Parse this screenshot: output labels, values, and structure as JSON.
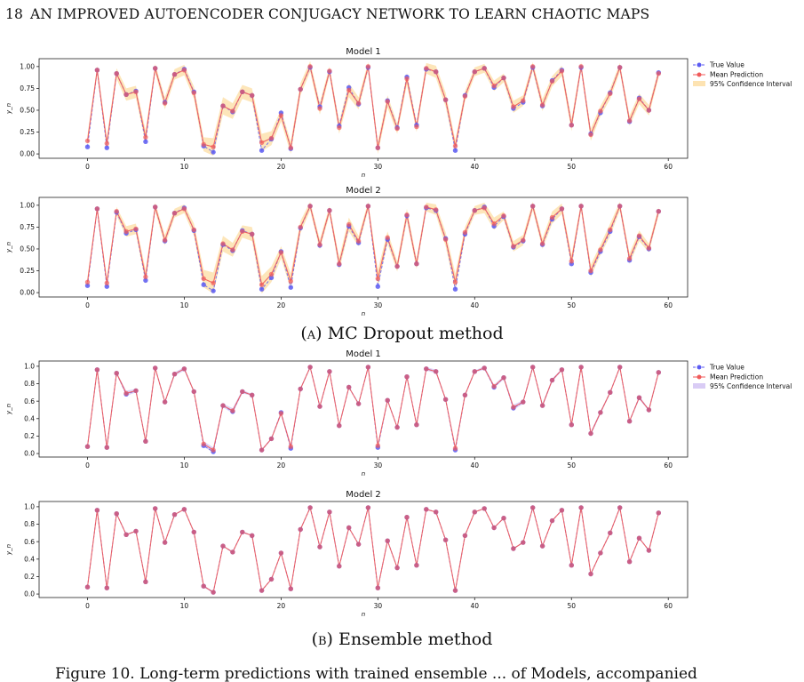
{
  "header": {
    "page_number": "18",
    "running_title": "AN IMPROVED AUTOENCODER CONJUGACY NETWORK TO LEARN CHAOTIC MAPS"
  },
  "legend_labels": {
    "true_value": "True Value",
    "mean_prediction": "Mean Prediction",
    "ci": "95% Confidence Interval"
  },
  "captions": {
    "a_label": "(a)",
    "a_text": "MC Dropout method",
    "b_label": "(b)",
    "b_text": "Ensemble method"
  },
  "footer_text": "Figure 10. Long-term predictions with trained ensemble ... of Models, accompanied",
  "colors": {
    "true_value": "#5b5bf2",
    "mean_prediction": "#f05a5a",
    "ci_dropout": "#fde3b2",
    "ci_ensemble": "#d9ccf5"
  },
  "chart_data": [
    {
      "type": "line",
      "group": "MC Dropout method",
      "title": "Model 1",
      "xlabel": "n",
      "ylabel": "y_n",
      "xlim": [
        -5,
        62
      ],
      "ylim": [
        -0.05,
        1.09
      ],
      "xticks": [
        0,
        10,
        20,
        30,
        40,
        50,
        60
      ],
      "yticks": [
        0.0,
        0.25,
        0.5,
        0.75,
        1.0
      ],
      "ytick_labels": [
        "0.00",
        "0.25",
        "0.50",
        "0.75",
        "1.00"
      ],
      "legend": "outside-right",
      "ci_width": [
        0.07,
        0.05,
        0.07,
        0.06,
        0.07,
        0.07,
        0.08,
        0.05,
        0.07,
        0.06,
        0.06,
        0.07,
        0.08,
        0.1,
        0.1,
        0.09,
        0.08,
        0.08,
        0.1,
        0.08,
        0.07,
        0.07,
        0.07,
        0.06,
        0.07,
        0.05,
        0.07,
        0.08,
        0.07,
        0.05,
        0.07,
        0.07,
        0.06,
        0.07,
        0.06,
        0.06,
        0.07,
        0.08,
        0.07,
        0.06,
        0.05,
        0.05,
        0.06,
        0.05,
        0.07,
        0.06,
        0.05,
        0.07,
        0.06,
        0.06,
        0.07,
        0.05,
        0.07,
        0.06,
        0.06,
        0.05,
        0.06,
        0.06,
        0.06,
        0.05
      ],
      "series": [
        {
          "name": "True Value",
          "values": [
            0.08,
            0.96,
            0.07,
            0.92,
            0.68,
            0.72,
            0.14,
            0.98,
            0.59,
            0.91,
            0.97,
            0.71,
            0.09,
            0.02,
            0.55,
            0.48,
            0.71,
            0.67,
            0.04,
            0.17,
            0.47,
            0.06,
            0.74,
            0.99,
            0.54,
            0.94,
            0.32,
            0.76,
            0.57,
            0.99,
            0.07,
            0.61,
            0.3,
            0.88,
            0.33,
            0.97,
            0.94,
            0.62,
            0.04,
            0.67,
            0.94,
            0.98,
            0.76,
            0.87,
            0.52,
            0.59,
            0.99,
            0.55,
            0.84,
            0.96,
            0.33,
            0.99,
            0.23,
            0.47,
            0.7,
            0.99,
            0.37,
            0.64,
            0.5,
            0.93
          ]
        },
        {
          "name": "Mean Prediction",
          "values": [
            0.15,
            0.96,
            0.12,
            0.92,
            0.68,
            0.71,
            0.19,
            0.98,
            0.58,
            0.91,
            0.96,
            0.7,
            0.11,
            0.08,
            0.55,
            0.49,
            0.71,
            0.67,
            0.13,
            0.18,
            0.44,
            0.07,
            0.74,
            1.0,
            0.52,
            0.95,
            0.3,
            0.73,
            0.58,
            1.0,
            0.07,
            0.6,
            0.29,
            0.86,
            0.31,
            0.98,
            0.94,
            0.62,
            0.09,
            0.66,
            0.94,
            0.98,
            0.78,
            0.87,
            0.54,
            0.61,
            1.0,
            0.56,
            0.83,
            0.95,
            0.33,
            1.0,
            0.22,
            0.49,
            0.69,
            0.99,
            0.38,
            0.63,
            0.5,
            0.92
          ]
        }
      ]
    },
    {
      "type": "line",
      "group": "MC Dropout method",
      "title": "Model 2",
      "xlabel": "n",
      "ylabel": "y_n",
      "xlim": [
        -5,
        62
      ],
      "ylim": [
        -0.05,
        1.09
      ],
      "xticks": [
        0,
        10,
        20,
        30,
        40,
        50,
        60
      ],
      "yticks": [
        0.0,
        0.25,
        0.5,
        0.75,
        1.0
      ],
      "ytick_labels": [
        "0.00",
        "0.25",
        "0.50",
        "0.75",
        "1.00"
      ],
      "legend": "none",
      "ci_width": [
        0.06,
        0.04,
        0.06,
        0.05,
        0.06,
        0.06,
        0.08,
        0.05,
        0.06,
        0.05,
        0.05,
        0.07,
        0.1,
        0.12,
        0.09,
        0.08,
        0.07,
        0.08,
        0.1,
        0.09,
        0.07,
        0.09,
        0.07,
        0.05,
        0.06,
        0.05,
        0.07,
        0.08,
        0.06,
        0.05,
        0.1,
        0.07,
        0.06,
        0.07,
        0.06,
        0.05,
        0.06,
        0.08,
        0.1,
        0.06,
        0.05,
        0.06,
        0.07,
        0.05,
        0.06,
        0.06,
        0.05,
        0.06,
        0.07,
        0.06,
        0.07,
        0.05,
        0.07,
        0.06,
        0.07,
        0.05,
        0.06,
        0.06,
        0.05,
        0.05
      ],
      "series": [
        {
          "name": "True Value",
          "values": [
            0.08,
            0.96,
            0.07,
            0.92,
            0.68,
            0.72,
            0.14,
            0.98,
            0.59,
            0.91,
            0.97,
            0.71,
            0.09,
            0.02,
            0.55,
            0.48,
            0.71,
            0.67,
            0.04,
            0.17,
            0.47,
            0.06,
            0.74,
            0.99,
            0.54,
            0.94,
            0.32,
            0.76,
            0.57,
            0.99,
            0.07,
            0.61,
            0.3,
            0.88,
            0.33,
            0.97,
            0.94,
            0.62,
            0.04,
            0.67,
            0.94,
            0.98,
            0.76,
            0.87,
            0.52,
            0.59,
            0.99,
            0.55,
            0.84,
            0.96,
            0.33,
            0.99,
            0.23,
            0.47,
            0.7,
            0.99,
            0.37,
            0.64,
            0.5,
            0.93
          ]
        },
        {
          "name": "Mean Prediction",
          "values": [
            0.12,
            0.96,
            0.11,
            0.93,
            0.7,
            0.73,
            0.18,
            0.98,
            0.6,
            0.91,
            0.96,
            0.72,
            0.16,
            0.11,
            0.56,
            0.49,
            0.7,
            0.67,
            0.09,
            0.21,
            0.46,
            0.13,
            0.75,
            0.99,
            0.55,
            0.94,
            0.33,
            0.78,
            0.59,
            0.99,
            0.16,
            0.63,
            0.3,
            0.89,
            0.33,
            0.98,
            0.95,
            0.61,
            0.12,
            0.69,
            0.94,
            0.97,
            0.79,
            0.88,
            0.53,
            0.6,
            0.99,
            0.56,
            0.86,
            0.96,
            0.36,
            0.99,
            0.25,
            0.49,
            0.72,
            0.99,
            0.39,
            0.65,
            0.51,
            0.93
          ]
        }
      ]
    },
    {
      "type": "line",
      "group": "Ensemble method",
      "title": "Model 1",
      "xlabel": "n",
      "ylabel": "y_n",
      "xlim": [
        -5,
        62
      ],
      "ylim": [
        -0.04,
        1.06
      ],
      "xticks": [
        0,
        10,
        20,
        30,
        40,
        50,
        60
      ],
      "yticks": [
        0.0,
        0.2,
        0.4,
        0.6,
        0.8,
        1.0
      ],
      "ytick_labels": [
        "0.0",
        "0.2",
        "0.4",
        "0.6",
        "0.8",
        "1.0"
      ],
      "legend": "outside-right",
      "ci_width": [
        0.01,
        0.01,
        0.01,
        0.01,
        0.03,
        0.02,
        0.01,
        0.01,
        0.01,
        0.02,
        0.02,
        0.01,
        0.03,
        0.03,
        0.02,
        0.03,
        0.02,
        0.01,
        0.01,
        0.01,
        0.02,
        0.03,
        0.01,
        0.01,
        0.01,
        0.01,
        0.01,
        0.01,
        0.01,
        0.01,
        0.03,
        0.01,
        0.01,
        0.01,
        0.01,
        0.02,
        0.02,
        0.01,
        0.03,
        0.01,
        0.01,
        0.02,
        0.02,
        0.02,
        0.03,
        0.02,
        0.01,
        0.02,
        0.02,
        0.01,
        0.01,
        0.01,
        0.02,
        0.02,
        0.01,
        0.01,
        0.01,
        0.02,
        0.01,
        0.01
      ],
      "series": [
        {
          "name": "True Value",
          "values": [
            0.08,
            0.96,
            0.07,
            0.92,
            0.68,
            0.72,
            0.14,
            0.98,
            0.59,
            0.91,
            0.97,
            0.71,
            0.09,
            0.02,
            0.55,
            0.48,
            0.71,
            0.67,
            0.04,
            0.17,
            0.47,
            0.06,
            0.74,
            0.99,
            0.54,
            0.94,
            0.32,
            0.76,
            0.57,
            0.99,
            0.07,
            0.61,
            0.3,
            0.88,
            0.33,
            0.97,
            0.94,
            0.62,
            0.04,
            0.67,
            0.94,
            0.98,
            0.76,
            0.87,
            0.52,
            0.59,
            0.99,
            0.55,
            0.84,
            0.96,
            0.33,
            0.99,
            0.23,
            0.47,
            0.7,
            0.99,
            0.37,
            0.64,
            0.5,
            0.93
          ]
        },
        {
          "name": "Mean Prediction",
          "values": [
            0.08,
            0.96,
            0.07,
            0.92,
            0.69,
            0.72,
            0.14,
            0.98,
            0.59,
            0.91,
            0.97,
            0.71,
            0.11,
            0.04,
            0.55,
            0.49,
            0.71,
            0.67,
            0.04,
            0.17,
            0.46,
            0.08,
            0.74,
            0.99,
            0.54,
            0.94,
            0.32,
            0.76,
            0.57,
            0.99,
            0.09,
            0.61,
            0.3,
            0.88,
            0.33,
            0.97,
            0.94,
            0.62,
            0.06,
            0.67,
            0.94,
            0.98,
            0.77,
            0.87,
            0.53,
            0.59,
            0.99,
            0.55,
            0.84,
            0.96,
            0.33,
            0.99,
            0.23,
            0.47,
            0.7,
            0.99,
            0.37,
            0.64,
            0.5,
            0.93
          ]
        }
      ]
    },
    {
      "type": "line",
      "group": "Ensemble method",
      "title": "Model 2",
      "xlabel": "n",
      "ylabel": "y_n",
      "xlim": [
        -5,
        62
      ],
      "ylim": [
        -0.04,
        1.06
      ],
      "xticks": [
        0,
        10,
        20,
        30,
        40,
        50,
        60
      ],
      "yticks": [
        0.0,
        0.2,
        0.4,
        0.6,
        0.8,
        1.0
      ],
      "ytick_labels": [
        "0.0",
        "0.2",
        "0.4",
        "0.6",
        "0.8",
        "1.0"
      ],
      "legend": "none",
      "ci_width": [
        0.005,
        0.005,
        0.005,
        0.005,
        0.01,
        0.005,
        0.005,
        0.005,
        0.005,
        0.005,
        0.005,
        0.005,
        0.01,
        0.01,
        0.005,
        0.01,
        0.005,
        0.005,
        0.005,
        0.005,
        0.005,
        0.005,
        0.005,
        0.005,
        0.005,
        0.005,
        0.005,
        0.005,
        0.005,
        0.005,
        0.005,
        0.005,
        0.005,
        0.005,
        0.005,
        0.005,
        0.005,
        0.005,
        0.005,
        0.005,
        0.005,
        0.005,
        0.005,
        0.005,
        0.005,
        0.005,
        0.005,
        0.005,
        0.005,
        0.005,
        0.005,
        0.005,
        0.005,
        0.005,
        0.005,
        0.005,
        0.005,
        0.005,
        0.005,
        0.005
      ],
      "series": [
        {
          "name": "True Value",
          "values": [
            0.08,
            0.96,
            0.07,
            0.92,
            0.68,
            0.72,
            0.14,
            0.98,
            0.59,
            0.91,
            0.97,
            0.71,
            0.09,
            0.02,
            0.55,
            0.48,
            0.71,
            0.67,
            0.04,
            0.17,
            0.47,
            0.06,
            0.74,
            0.99,
            0.54,
            0.94,
            0.32,
            0.76,
            0.57,
            0.99,
            0.07,
            0.61,
            0.3,
            0.88,
            0.33,
            0.97,
            0.94,
            0.62,
            0.04,
            0.67,
            0.94,
            0.98,
            0.76,
            0.87,
            0.52,
            0.59,
            0.99,
            0.55,
            0.84,
            0.96,
            0.33,
            0.99,
            0.23,
            0.47,
            0.7,
            0.99,
            0.37,
            0.64,
            0.5,
            0.93
          ]
        },
        {
          "name": "Mean Prediction",
          "values": [
            0.08,
            0.96,
            0.07,
            0.92,
            0.68,
            0.72,
            0.14,
            0.98,
            0.59,
            0.91,
            0.97,
            0.71,
            0.09,
            0.02,
            0.55,
            0.48,
            0.71,
            0.67,
            0.04,
            0.17,
            0.47,
            0.06,
            0.74,
            0.99,
            0.54,
            0.94,
            0.32,
            0.76,
            0.57,
            0.99,
            0.07,
            0.61,
            0.3,
            0.88,
            0.33,
            0.97,
            0.94,
            0.62,
            0.04,
            0.67,
            0.94,
            0.98,
            0.76,
            0.87,
            0.52,
            0.59,
            0.99,
            0.55,
            0.84,
            0.96,
            0.33,
            0.99,
            0.23,
            0.47,
            0.7,
            0.99,
            0.37,
            0.64,
            0.5,
            0.93
          ]
        }
      ]
    }
  ]
}
